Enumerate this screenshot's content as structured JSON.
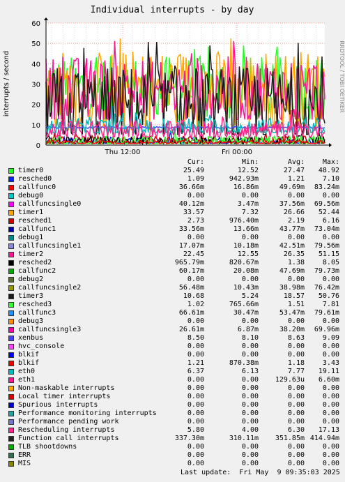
{
  "title": "Individual interrupts - by day",
  "side_label": "RRDTOOL / TOBI OETIKER",
  "ylabel": "interrupts / second",
  "y_ticks": [
    "0",
    "10",
    "20",
    "30",
    "40",
    "50",
    "60"
  ],
  "x_ticks": [
    "Thu 12:00",
    "Fri 00:00"
  ],
  "header": {
    "cur": "Cur:",
    "min": "Min:",
    "avg": "Avg:",
    "max": "Max:"
  },
  "last_update": "Last update:  Fri May  9 09:35:03 2025",
  "colors": {
    "background": "#f0f0f0",
    "plot_bg": "#ffffff",
    "grid_major": "#ff9999",
    "grid_minor": "#dddddd"
  },
  "legend": [
    {
      "name": "timer0",
      "color": "#22ff22",
      "cur": "25.49",
      "min": "12.52",
      "avg": "27.47",
      "max": "48.92"
    },
    {
      "name": "resched0",
      "color": "#0022ff",
      "cur": "1.09",
      "min": "942.93m",
      "avg": "1.21",
      "max": "7.10"
    },
    {
      "name": "callfunc0",
      "color": "#ff0000",
      "cur": "36.66m",
      "min": "16.86m",
      "avg": "49.69m",
      "max": "83.24m"
    },
    {
      "name": "debug0",
      "color": "#00cccc",
      "cur": "0.00",
      "min": "0.00",
      "avg": "0.00",
      "max": "0.00"
    },
    {
      "name": "callfuncsingle0",
      "color": "#ff00ff",
      "cur": "40.12m",
      "min": "3.47m",
      "avg": "37.56m",
      "max": "69.56m"
    },
    {
      "name": "timer1",
      "color": "#ffa500",
      "cur": "33.57",
      "min": "7.32",
      "avg": "26.66",
      "max": "52.44"
    },
    {
      "name": "resched1",
      "color": "#cc0000",
      "cur": "2.73",
      "min": "976.40m",
      "avg": "2.19",
      "max": "6.16"
    },
    {
      "name": "callfunc1",
      "color": "#0000aa",
      "cur": "33.56m",
      "min": "13.66m",
      "avg": "43.77m",
      "max": "73.04m"
    },
    {
      "name": "debug1",
      "color": "#008b8b",
      "cur": "0.00",
      "min": "0.00",
      "avg": "0.00",
      "max": "0.00"
    },
    {
      "name": "callfuncsingle1",
      "color": "#8888dd",
      "cur": "17.07m",
      "min": "10.18m",
      "avg": "42.51m",
      "max": "79.56m"
    },
    {
      "name": "timer2",
      "color": "#ff1493",
      "cur": "22.45",
      "min": "12.55",
      "avg": "26.35",
      "max": "51.15"
    },
    {
      "name": "resched2",
      "color": "#000000",
      "cur": "965.79m",
      "min": "820.67m",
      "avg": "1.38",
      "max": "8.05"
    },
    {
      "name": "callfunc2",
      "color": "#00aa00",
      "cur": "60.17m",
      "min": "20.08m",
      "avg": "47.69m",
      "max": "79.73m"
    },
    {
      "name": "debug2",
      "color": "#556b2f",
      "cur": "0.00",
      "min": "0.00",
      "avg": "0.00",
      "max": "0.00"
    },
    {
      "name": "callfuncsingle2",
      "color": "#999900",
      "cur": "56.48m",
      "min": "10.43m",
      "avg": "38.98m",
      "max": "76.42m"
    },
    {
      "name": "timer3",
      "color": "#1a1a1a",
      "cur": "10.68",
      "min": "5.24",
      "avg": "18.57",
      "max": "50.76"
    },
    {
      "name": "resched3",
      "color": "#33ff33",
      "cur": "1.02",
      "min": "765.66m",
      "avg": "1.51",
      "max": "7.81"
    },
    {
      "name": "callfunc3",
      "color": "#1e90ff",
      "cur": "66.61m",
      "min": "30.47m",
      "avg": "53.47m",
      "max": "79.61m"
    },
    {
      "name": "debug3",
      "color": "#ff8c00",
      "cur": "0.00",
      "min": "0.00",
      "avg": "0.00",
      "max": "0.00"
    },
    {
      "name": "callfuncsingle3",
      "color": "#ff00aa",
      "cur": "26.61m",
      "min": "6.87m",
      "avg": "38.20m",
      "max": "69.96m"
    },
    {
      "name": "xenbus",
      "color": "#4444ff",
      "cur": "8.50",
      "min": "8.10",
      "avg": "8.63",
      "max": "9.09"
    },
    {
      "name": "hvc_console",
      "color": "#ff44ff",
      "cur": "0.00",
      "min": "0.00",
      "avg": "0.00",
      "max": "0.00"
    },
    {
      "name": "blkif",
      "color": "#0000ff",
      "cur": "0.00",
      "min": "0.00",
      "avg": "0.00",
      "max": "0.00"
    },
    {
      "name": "blkif",
      "color": "#ee0000",
      "cur": "1.21",
      "min": "870.38m",
      "avg": "1.18",
      "max": "3.43"
    },
    {
      "name": "eth0",
      "color": "#00bbbb",
      "cur": "6.37",
      "min": "6.13",
      "avg": "7.77",
      "max": "19.11"
    },
    {
      "name": "eth1",
      "color": "#ff1493",
      "cur": "0.00",
      "min": "0.00",
      "avg": "129.63u",
      "max": "6.60m"
    },
    {
      "name": "Non-maskable interrupts",
      "color": "#ffa500",
      "cur": "0.00",
      "min": "0.00",
      "avg": "0.00",
      "max": "0.00"
    },
    {
      "name": "Local timer interrupts",
      "color": "#dd0000",
      "cur": "0.00",
      "min": "0.00",
      "avg": "0.00",
      "max": "0.00"
    },
    {
      "name": "Spurious interrupts",
      "color": "#0000cc",
      "cur": "0.00",
      "min": "0.00",
      "avg": "0.00",
      "max": "0.00"
    },
    {
      "name": "Performance monitoring interrupts",
      "color": "#2aa0a0",
      "cur": "0.00",
      "min": "0.00",
      "avg": "0.00",
      "max": "0.00"
    },
    {
      "name": "Performance pending work",
      "color": "#7777cc",
      "cur": "0.00",
      "min": "0.00",
      "avg": "0.00",
      "max": "0.00"
    },
    {
      "name": "Rescheduling interrupts",
      "color": "#ff2288",
      "cur": "5.80",
      "min": "4.00",
      "avg": "6.30",
      "max": "17.13"
    },
    {
      "name": "Function call interrupts",
      "color": "#222222",
      "cur": "337.30m",
      "min": "310.11m",
      "avg": "351.85m",
      "max": "414.94m"
    },
    {
      "name": "TLB shootdowns",
      "color": "#00aa00",
      "cur": "0.00",
      "min": "0.00",
      "avg": "0.00",
      "max": "0.00"
    },
    {
      "name": "ERR",
      "color": "#2f6f4f",
      "cur": "0.00",
      "min": "0.00",
      "avg": "0.00",
      "max": "0.00"
    },
    {
      "name": "MIS",
      "color": "#888800",
      "cur": "0.00",
      "min": "0.00",
      "avg": "0.00",
      "max": "0.00"
    }
  ],
  "chart_data": {
    "type": "line",
    "title": "Individual interrupts - by day",
    "ylabel": "interrupts / second",
    "xlabel": "",
    "ylim": [
      0,
      60
    ],
    "y_ticks": [
      0,
      10,
      20,
      30,
      40,
      50,
      60
    ],
    "x_ticks": [
      "Thu 12:00",
      "Fri 00:00"
    ],
    "grid": true,
    "legend_position": "below",
    "series": [
      {
        "name": "timer0",
        "color": "#22ff22",
        "cur": 25.49,
        "min": 12.52,
        "avg": 27.47,
        "max": 48.92
      },
      {
        "name": "resched0",
        "color": "#0022ff",
        "cur": 1.09,
        "min": 0.943,
        "avg": 1.21,
        "max": 7.1
      },
      {
        "name": "timer1",
        "color": "#ffa500",
        "cur": 33.57,
        "min": 7.32,
        "avg": 26.66,
        "max": 52.44
      },
      {
        "name": "resched1",
        "color": "#cc0000",
        "cur": 2.73,
        "min": 0.976,
        "avg": 2.19,
        "max": 6.16
      },
      {
        "name": "timer2",
        "color": "#ff1493",
        "cur": 22.45,
        "min": 12.55,
        "avg": 26.35,
        "max": 51.15
      },
      {
        "name": "resched2",
        "color": "#000000",
        "cur": 0.966,
        "min": 0.821,
        "avg": 1.38,
        "max": 8.05
      },
      {
        "name": "timer3",
        "color": "#1a1a1a",
        "cur": 10.68,
        "min": 5.24,
        "avg": 18.57,
        "max": 50.76
      },
      {
        "name": "resched3",
        "color": "#33ff33",
        "cur": 1.02,
        "min": 0.766,
        "avg": 1.51,
        "max": 7.81
      },
      {
        "name": "xenbus",
        "color": "#4444ff",
        "cur": 8.5,
        "min": 8.1,
        "avg": 8.63,
        "max": 9.09
      },
      {
        "name": "blkif",
        "color": "#ee0000",
        "cur": 1.21,
        "min": 0.87,
        "avg": 1.18,
        "max": 3.43
      },
      {
        "name": "eth0",
        "color": "#00bbbb",
        "cur": 6.37,
        "min": 6.13,
        "avg": 7.77,
        "max": 19.11
      },
      {
        "name": "Rescheduling interrupts",
        "color": "#ff2288",
        "cur": 5.8,
        "min": 4.0,
        "avg": 6.3,
        "max": 17.13
      }
    ]
  }
}
